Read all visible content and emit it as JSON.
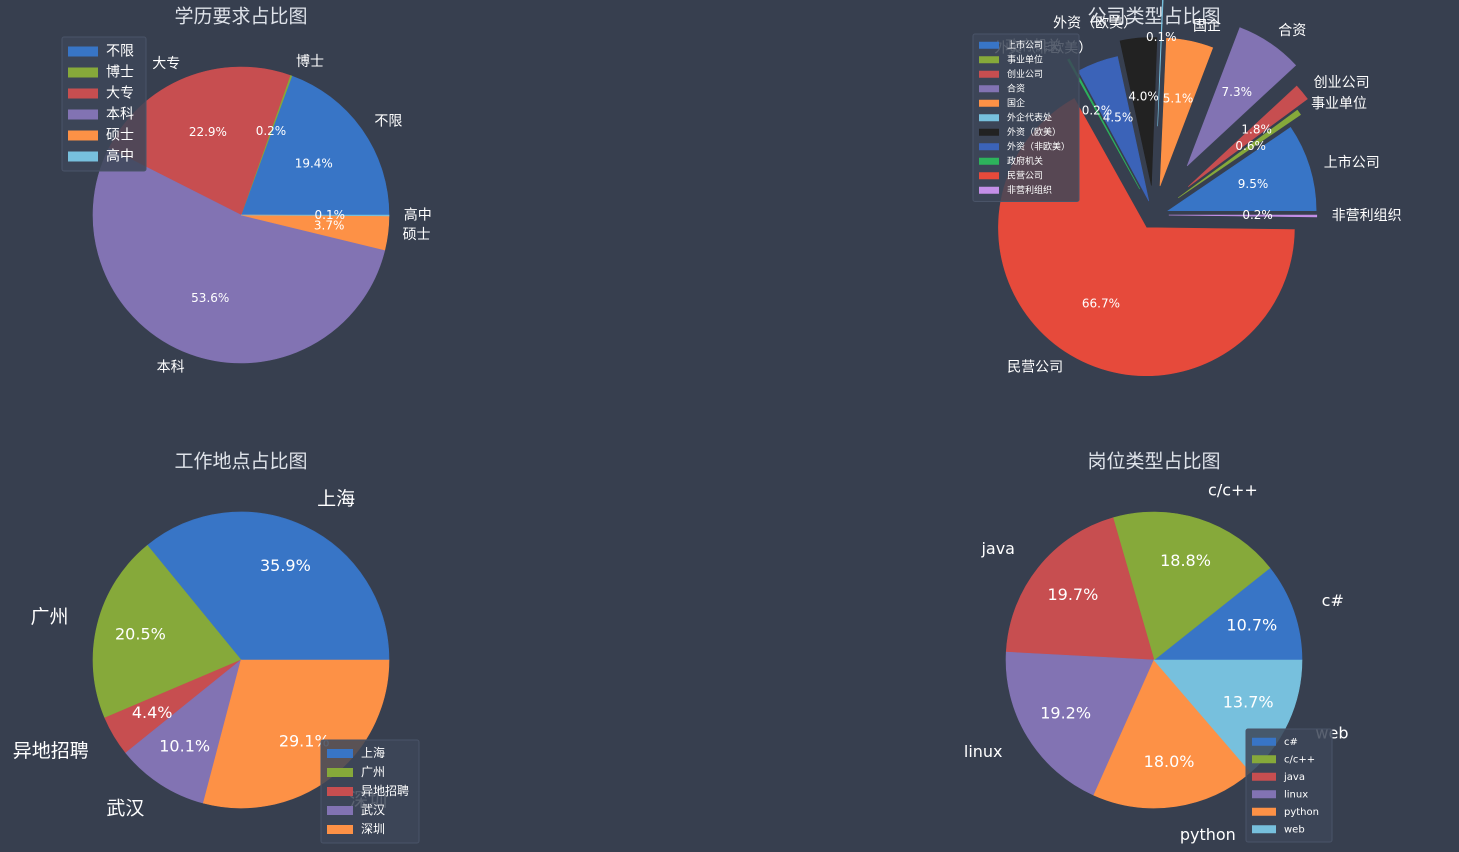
{
  "chart_data": [
    {
      "type": "pie",
      "title": "学历要求占比图",
      "slices": [
        {
          "label": "不限",
          "percent": 19.4,
          "pct_text": "19.4%",
          "color": "#3875c6"
        },
        {
          "label": "博士",
          "percent": 0.2,
          "pct_text": "0.2%",
          "color": "#86a93a"
        },
        {
          "label": "大专",
          "percent": 22.9,
          "pct_text": "22.9%",
          "color": "#c74e50"
        },
        {
          "label": "本科",
          "percent": 53.6,
          "pct_text": "53.6%",
          "color": "#8273b3"
        },
        {
          "label": "硕士",
          "percent": 3.7,
          "pct_text": "3.7%",
          "color": "#fd9146"
        },
        {
          "label": "高中",
          "percent": 0.1,
          "pct_text": "0.1%",
          "color": "#77c0dd"
        }
      ],
      "legend": "top-left"
    },
    {
      "type": "pie",
      "title": "公司类型占比图",
      "slices": [
        {
          "label": "上市公司",
          "percent": 9.5,
          "pct_text": "9.5%",
          "color": "#3875c6"
        },
        {
          "label": "事业单位",
          "percent": 0.6,
          "pct_text": "0.6%",
          "color": "#86a93a"
        },
        {
          "label": "创业公司",
          "percent": 1.8,
          "pct_text": "1.8%",
          "color": "#c74e50"
        },
        {
          "label": "合资",
          "percent": 7.3,
          "pct_text": "7.3%",
          "color": "#8273b3"
        },
        {
          "label": "国企",
          "percent": 5.1,
          "pct_text": "5.1%",
          "color": "#fd9146"
        },
        {
          "label": "外企代表处",
          "percent": 0.1,
          "pct_text": "0.1%",
          "color": "#77c0dd"
        },
        {
          "label": "外资（欧美）",
          "percent": 4.0,
          "pct_text": "4.0%",
          "color": "#222222"
        },
        {
          "label": "外资（非欧美）",
          "percent": 4.5,
          "pct_text": "4.5%",
          "color": "#3b63b8"
        },
        {
          "label": "政府机关",
          "percent": 0.2,
          "pct_text": "0.2%",
          "color": "#2db35c"
        },
        {
          "label": "民营公司",
          "percent": 66.7,
          "pct_text": "66.7%",
          "color": "#e64a3b"
        },
        {
          "label": "非营利组织",
          "percent": 0.2,
          "pct_text": "0.2%",
          "color": "#c48fe8"
        }
      ],
      "legend": "top-left",
      "exploded": true
    },
    {
      "type": "pie",
      "title": "工作地点占比图",
      "slices": [
        {
          "label": "上海",
          "percent": 35.9,
          "pct_text": "35.9%",
          "color": "#3875c6"
        },
        {
          "label": "广州",
          "percent": 20.5,
          "pct_text": "20.5%",
          "color": "#86a93a"
        },
        {
          "label": "异地招聘",
          "percent": 4.4,
          "pct_text": "4.4%",
          "color": "#c74e50"
        },
        {
          "label": "武汉",
          "percent": 10.1,
          "pct_text": "10.1%",
          "color": "#8273b3"
        },
        {
          "label": "深圳",
          "percent": 29.1,
          "pct_text": "29.1%",
          "color": "#fd9146"
        }
      ],
      "legend": "bottom-right"
    },
    {
      "type": "pie",
      "title": "岗位类型占比图",
      "slices": [
        {
          "label": "c#",
          "percent": 10.7,
          "pct_text": "10.7%",
          "color": "#3875c6"
        },
        {
          "label": "c/c++",
          "percent": 18.8,
          "pct_text": "18.8%",
          "color": "#86a93a"
        },
        {
          "label": "java",
          "percent": 19.7,
          "pct_text": "19.7%",
          "color": "#c74e50"
        },
        {
          "label": "linux",
          "percent": 19.2,
          "pct_text": "19.2%",
          "color": "#8273b3"
        },
        {
          "label": "python",
          "percent": 18.0,
          "pct_text": "18.0%",
          "color": "#fd9146"
        },
        {
          "label": "web",
          "percent": 13.7,
          "pct_text": "13.7%",
          "color": "#77c0dd"
        }
      ],
      "legend": "bottom-right"
    }
  ]
}
